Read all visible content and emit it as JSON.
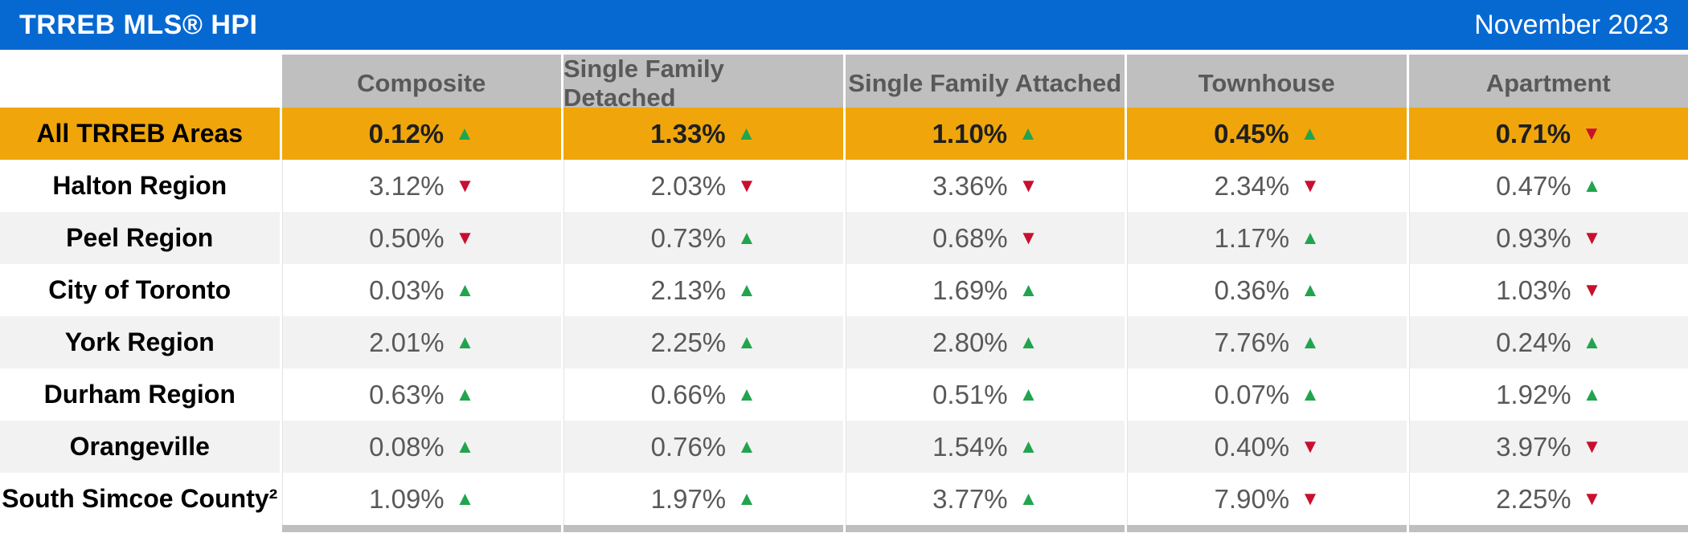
{
  "header": {
    "title": "TRREB MLS® HPI",
    "date": "November 2023"
  },
  "columns": [
    "Composite",
    "Single Family Detached",
    "Single Family Attached",
    "Townhouse",
    "Apartment"
  ],
  "rows": [
    {
      "label": "All TRREB Areas",
      "highlight": true,
      "cells": [
        {
          "value": "0.12%",
          "dir": "up"
        },
        {
          "value": "1.33%",
          "dir": "up"
        },
        {
          "value": "1.10%",
          "dir": "up"
        },
        {
          "value": "0.45%",
          "dir": "up"
        },
        {
          "value": "0.71%",
          "dir": "down"
        }
      ]
    },
    {
      "label": "Halton Region",
      "highlight": false,
      "cells": [
        {
          "value": "3.12%",
          "dir": "down"
        },
        {
          "value": "2.03%",
          "dir": "down"
        },
        {
          "value": "3.36%",
          "dir": "down"
        },
        {
          "value": "2.34%",
          "dir": "down"
        },
        {
          "value": "0.47%",
          "dir": "up"
        }
      ]
    },
    {
      "label": "Peel Region",
      "highlight": false,
      "cells": [
        {
          "value": "0.50%",
          "dir": "down"
        },
        {
          "value": "0.73%",
          "dir": "up"
        },
        {
          "value": "0.68%",
          "dir": "down"
        },
        {
          "value": "1.17%",
          "dir": "up"
        },
        {
          "value": "0.93%",
          "dir": "down"
        }
      ]
    },
    {
      "label": "City of Toronto",
      "highlight": false,
      "cells": [
        {
          "value": "0.03%",
          "dir": "up"
        },
        {
          "value": "2.13%",
          "dir": "up"
        },
        {
          "value": "1.69%",
          "dir": "up"
        },
        {
          "value": "0.36%",
          "dir": "up"
        },
        {
          "value": "1.03%",
          "dir": "down"
        }
      ]
    },
    {
      "label": "York Region",
      "highlight": false,
      "cells": [
        {
          "value": "2.01%",
          "dir": "up"
        },
        {
          "value": "2.25%",
          "dir": "up"
        },
        {
          "value": "2.80%",
          "dir": "up"
        },
        {
          "value": "7.76%",
          "dir": "up"
        },
        {
          "value": "0.24%",
          "dir": "up"
        }
      ]
    },
    {
      "label": "Durham Region",
      "highlight": false,
      "cells": [
        {
          "value": "0.63%",
          "dir": "up"
        },
        {
          "value": "0.66%",
          "dir": "up"
        },
        {
          "value": "0.51%",
          "dir": "up"
        },
        {
          "value": "0.07%",
          "dir": "up"
        },
        {
          "value": "1.92%",
          "dir": "up"
        }
      ]
    },
    {
      "label": "Orangeville",
      "highlight": false,
      "cells": [
        {
          "value": "0.08%",
          "dir": "up"
        },
        {
          "value": "0.76%",
          "dir": "up"
        },
        {
          "value": "1.54%",
          "dir": "up"
        },
        {
          "value": "0.40%",
          "dir": "down"
        },
        {
          "value": "3.97%",
          "dir": "down"
        }
      ]
    },
    {
      "label": "South Simcoe County²",
      "highlight": false,
      "cells": [
        {
          "value": "1.09%",
          "dir": "up"
        },
        {
          "value": "1.97%",
          "dir": "up"
        },
        {
          "value": "3.77%",
          "dir": "up"
        },
        {
          "value": "7.90%",
          "dir": "down"
        },
        {
          "value": "2.25%",
          "dir": "down"
        }
      ]
    }
  ],
  "icons": {
    "up": "▲",
    "down": "▼"
  },
  "colors": {
    "banner_bg": "#0669D2",
    "highlight_bg": "#F0A60A",
    "column_header_bg": "#BFBFBF",
    "stripe_bg": "#F2F2F2",
    "up_green": "#22A44E",
    "down_red": "#C8102E",
    "value_text": "#595959"
  },
  "chart_data": {
    "type": "table",
    "title": "TRREB MLS® HPI",
    "subtitle": "November 2023",
    "columns": [
      "Composite",
      "Single Family Detached",
      "Single Family Attached",
      "Townhouse",
      "Apartment"
    ],
    "row_labels": [
      "All TRREB Areas",
      "Halton Region",
      "Peel Region",
      "City of Toronto",
      "York Region",
      "Durham Region",
      "Orangeville",
      "South Simcoe County²"
    ],
    "values_pct": [
      [
        0.12,
        1.33,
        1.1,
        0.45,
        0.71
      ],
      [
        3.12,
        2.03,
        3.36,
        2.34,
        0.47
      ],
      [
        0.5,
        0.73,
        0.68,
        1.17,
        0.93
      ],
      [
        0.03,
        2.13,
        1.69,
        0.36,
        1.03
      ],
      [
        2.01,
        2.25,
        2.8,
        7.76,
        0.24
      ],
      [
        0.63,
        0.66,
        0.51,
        0.07,
        1.92
      ],
      [
        0.08,
        0.76,
        1.54,
        0.4,
        3.97
      ],
      [
        1.09,
        1.97,
        3.77,
        7.9,
        2.25
      ]
    ],
    "directions": [
      [
        "up",
        "up",
        "up",
        "up",
        "down"
      ],
      [
        "down",
        "down",
        "down",
        "down",
        "up"
      ],
      [
        "down",
        "up",
        "down",
        "up",
        "down"
      ],
      [
        "up",
        "up",
        "up",
        "up",
        "down"
      ],
      [
        "up",
        "up",
        "up",
        "up",
        "up"
      ],
      [
        "up",
        "up",
        "up",
        "up",
        "up"
      ],
      [
        "up",
        "up",
        "up",
        "down",
        "down"
      ],
      [
        "up",
        "up",
        "up",
        "down",
        "down"
      ]
    ]
  }
}
